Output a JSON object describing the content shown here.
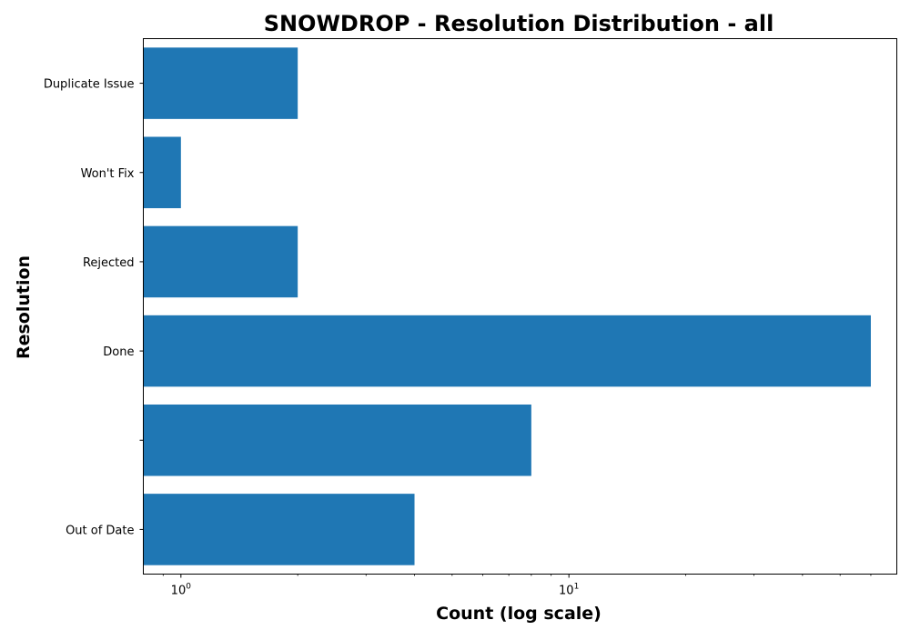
{
  "chart_data": {
    "type": "bar",
    "orientation": "horizontal",
    "title": "SNOWDROP - Resolution Distribution - all",
    "xlabel": "Count (log scale)",
    "ylabel": "Resolution",
    "x_scale": "log",
    "xlim": [
      0.8,
      70
    ],
    "x_ticks": [
      {
        "value": 1,
        "base": "10",
        "exponent": "0"
      },
      {
        "value": 10,
        "base": "10",
        "exponent": "1"
      }
    ],
    "categories": [
      "Duplicate Issue",
      "Won't Fix",
      "Rejected",
      "Done",
      "",
      "Out of Date"
    ],
    "values": [
      2,
      1,
      2,
      60,
      8,
      4
    ],
    "bar_color": "#1f77b4",
    "grid": false,
    "legend": null
  }
}
